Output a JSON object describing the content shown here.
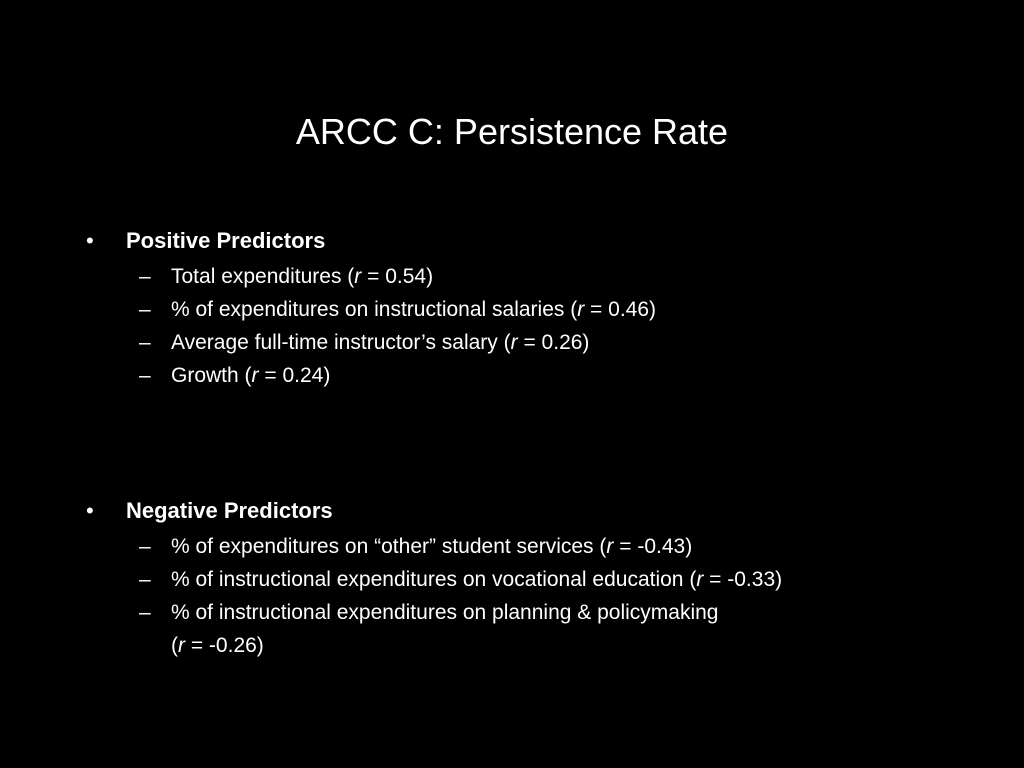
{
  "slide": {
    "title": "ARCC C: Persistence Rate",
    "bullet_glyph": "•",
    "dash_glyph": "–",
    "positive": {
      "heading": "Positive Predictors",
      "items": [
        {
          "text": "Total expenditures (",
          "r_symbol": "r",
          "value": " = 0.54)"
        },
        {
          "text": "% of expenditures on instructional salaries (",
          "r_symbol": "r",
          "value": " = 0.46)"
        },
        {
          "text": "Average full-time instructor’s salary (",
          "r_symbol": "r",
          "value": " = 0.26)"
        },
        {
          "text": "Growth (",
          "r_symbol": "r",
          "value": " = 0.24)"
        }
      ]
    },
    "negative": {
      "heading": "Negative Predictors",
      "items": [
        {
          "text": "% of expenditures on “other” student services (",
          "r_symbol": "r",
          "value": " = -0.43)"
        },
        {
          "text": "% of instructional expenditures on vocational education (",
          "r_symbol": "r",
          "value": " = -0.33)"
        },
        {
          "text": "% of instructional expenditures on planning & policymaking",
          "cont_open": "(",
          "r_symbol": "r",
          "value": " = -0.26)"
        }
      ]
    }
  }
}
